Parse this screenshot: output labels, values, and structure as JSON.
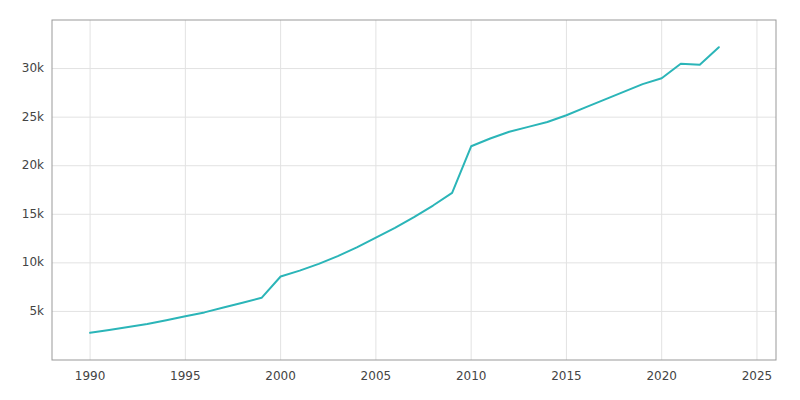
{
  "chart_data": {
    "type": "line",
    "x": [
      1990,
      1991,
      1992,
      1993,
      1994,
      1995,
      1996,
      1997,
      1998,
      1999,
      2000,
      2001,
      2002,
      2003,
      2004,
      2005,
      2006,
      2007,
      2008,
      2009,
      2010,
      2011,
      2012,
      2013,
      2014,
      2015,
      2016,
      2017,
      2018,
      2019,
      2020,
      2021,
      2022,
      2023
    ],
    "values": [
      2800,
      3100,
      3400,
      3700,
      4100,
      4500,
      4900,
      5400,
      5900,
      6400,
      8600,
      9200,
      9900,
      10700,
      11600,
      12600,
      13600,
      14700,
      15900,
      17200,
      22000,
      22800,
      23500,
      24000,
      24500,
      25200,
      26000,
      26800,
      27600,
      28400,
      29000,
      30500,
      30400,
      32200
    ],
    "color": "#2bb5b8",
    "xlim": [
      1988,
      2026
    ],
    "ylim": [
      0,
      35000
    ],
    "xticks": [
      1990,
      1995,
      2000,
      2005,
      2010,
      2015,
      2020,
      2025
    ],
    "yticks": [
      {
        "value": 5000,
        "label": "5k"
      },
      {
        "value": 10000,
        "label": "10k"
      },
      {
        "value": 15000,
        "label": "15k"
      },
      {
        "value": 20000,
        "label": "20k"
      },
      {
        "value": 25000,
        "label": "25k"
      },
      {
        "value": 30000,
        "label": "30k"
      }
    ],
    "grid": true
  }
}
